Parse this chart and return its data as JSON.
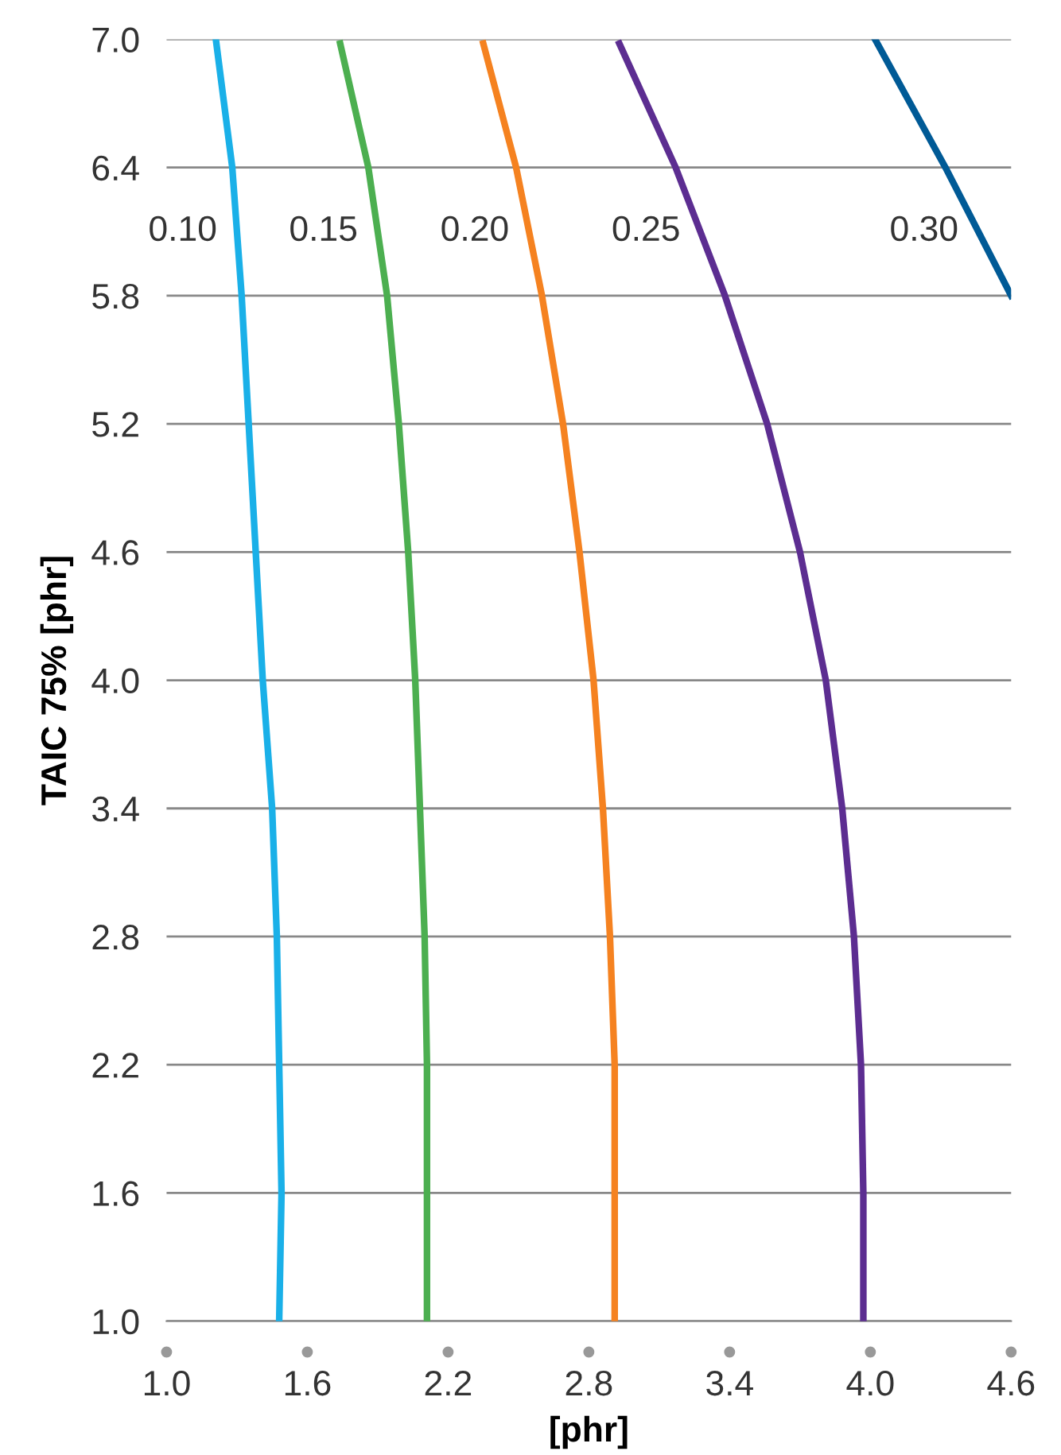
{
  "chart_data": {
    "type": "line",
    "xlabel": "[phr]",
    "ylabel": "TAIC 75% [phr]",
    "xlim": [
      1.0,
      4.6
    ],
    "ylim": [
      1.0,
      7.0
    ],
    "xticks": [
      {
        "value": 1.0,
        "label": "1.0"
      },
      {
        "value": 1.6,
        "label": "1.6"
      },
      {
        "value": 2.2,
        "label": "2.2"
      },
      {
        "value": 2.8,
        "label": "2.8"
      },
      {
        "value": 3.4,
        "label": "3.4"
      },
      {
        "value": 4.0,
        "label": "4.0"
      },
      {
        "value": 4.6,
        "label": "4.6"
      }
    ],
    "yticks": [
      {
        "value": 1.0,
        "label": "1.0"
      },
      {
        "value": 1.6,
        "label": "1.6"
      },
      {
        "value": 2.2,
        "label": "2.2"
      },
      {
        "value": 2.8,
        "label": "2.8"
      },
      {
        "value": 3.4,
        "label": "3.4"
      },
      {
        "value": 4.0,
        "label": "4.0"
      },
      {
        "value": 4.6,
        "label": "4.6"
      },
      {
        "value": 5.2,
        "label": "5.2"
      },
      {
        "value": 5.8,
        "label": "5.8"
      },
      {
        "value": 6.4,
        "label": "6.4"
      },
      {
        "value": 7.0,
        "label": "7.0"
      }
    ],
    "grid": "y",
    "marker": "none",
    "line_style": "solid",
    "series": [
      {
        "name": "0.10",
        "color": "#1ab0e8",
        "x": [
          1.48,
          1.49,
          1.48,
          1.47,
          1.45,
          1.41,
          1.38,
          1.35,
          1.32,
          1.28,
          1.21
        ],
        "values": [
          1.0,
          1.6,
          2.2,
          2.8,
          3.4,
          4.0,
          4.6,
          5.2,
          5.8,
          6.4,
          7.0
        ]
      },
      {
        "name": "0.15",
        "color": "#4caf50",
        "x": [
          2.11,
          2.11,
          2.11,
          2.1,
          2.08,
          2.06,
          2.03,
          1.99,
          1.94,
          1.86,
          1.74
        ],
        "values": [
          1.0,
          1.6,
          2.2,
          2.8,
          3.4,
          4.0,
          4.6,
          5.2,
          5.8,
          6.4,
          6.98
        ]
      },
      {
        "name": "0.20",
        "color": "#f58220",
        "x": [
          2.91,
          2.91,
          2.91,
          2.89,
          2.86,
          2.82,
          2.76,
          2.69,
          2.6,
          2.49,
          2.35
        ],
        "values": [
          1.0,
          1.6,
          2.2,
          2.8,
          3.4,
          4.0,
          4.6,
          5.2,
          5.8,
          6.4,
          6.98
        ]
      },
      {
        "name": "0.25",
        "color": "#5c2d91",
        "x": [
          3.97,
          3.97,
          3.96,
          3.93,
          3.88,
          3.81,
          3.7,
          3.56,
          3.38,
          3.17,
          2.93
        ],
        "values": [
          1.0,
          1.6,
          2.2,
          2.8,
          3.4,
          4.0,
          4.6,
          5.2,
          5.8,
          6.4,
          6.98
        ]
      },
      {
        "name": "0.30",
        "color": "#005a96",
        "x": [
          4.6,
          4.32,
          4.02
        ],
        "values": [
          5.8,
          6.4,
          7.0
        ]
      }
    ]
  }
}
